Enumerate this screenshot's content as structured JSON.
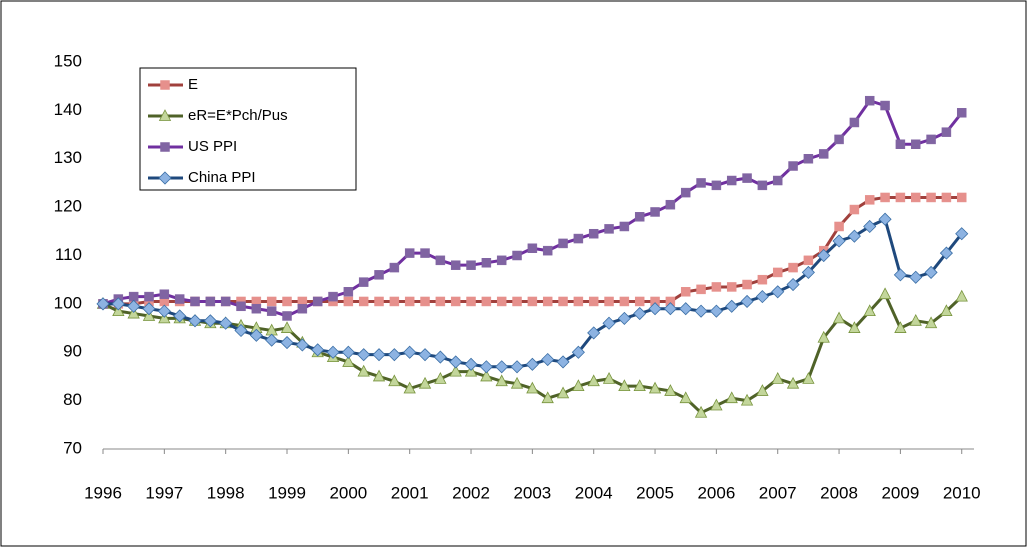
{
  "chart_data": {
    "type": "line",
    "x": [
      1996,
      1996.25,
      1996.5,
      1996.75,
      1997,
      1997.25,
      1997.5,
      1997.75,
      1998,
      1998.25,
      1998.5,
      1998.75,
      1999,
      1999.25,
      1999.5,
      1999.75,
      2000,
      2000.25,
      2000.5,
      2000.75,
      2001,
      2001.25,
      2001.5,
      2001.75,
      2002,
      2002.25,
      2002.5,
      2002.75,
      2003,
      2003.25,
      2003.5,
      2003.75,
      2004,
      2004.25,
      2004.5,
      2004.75,
      2005,
      2005.25,
      2005.5,
      2005.75,
      2006,
      2006.25,
      2006.5,
      2006.75,
      2007,
      2007.25,
      2007.5,
      2007.75,
      2008,
      2008.25,
      2008.5,
      2008.75,
      2009,
      2009.25,
      2009.5,
      2009.75,
      2010
    ],
    "series": [
      {
        "name": "E",
        "color": "#a0403c",
        "marker_color": "#e6908c",
        "marker": "square",
        "values": [
          100,
          100,
          100,
          100.5,
          100.5,
          100.5,
          100.5,
          100.5,
          100.5,
          100.5,
          100.5,
          100.5,
          100.5,
          100.5,
          100.5,
          100.5,
          100.5,
          100.5,
          100.5,
          100.5,
          100.5,
          100.5,
          100.5,
          100.5,
          100.5,
          100.5,
          100.5,
          100.5,
          100.5,
          100.5,
          100.5,
          100.5,
          100.5,
          100.5,
          100.5,
          100.5,
          100.5,
          100.5,
          102.5,
          103,
          103.5,
          103.5,
          104,
          105,
          106.5,
          107.5,
          109,
          111,
          116,
          119.5,
          121.5,
          122,
          122,
          122,
          122,
          122,
          122
        ]
      },
      {
        "name": "eR=E*Pch/Pus",
        "color": "#4f6228",
        "marker_color": "#c3d69b",
        "marker": "triangle",
        "values": [
          100,
          98.5,
          98,
          97.5,
          97,
          97,
          96.5,
          96,
          96,
          95.5,
          95,
          94.5,
          95,
          92,
          90,
          89,
          88,
          86,
          85,
          84,
          82.5,
          83.5,
          84.5,
          86,
          86,
          85,
          84,
          83.5,
          82.5,
          80.5,
          81.5,
          83,
          84,
          84.5,
          83,
          83,
          82.5,
          82,
          80.5,
          77.5,
          79,
          80.5,
          80,
          82,
          84.5,
          83.5,
          84.5,
          93,
          97,
          95,
          98.5,
          102,
          95,
          96.5,
          96,
          98.5,
          101.5
        ]
      },
      {
        "name": "US PPI",
        "color": "#7030a0",
        "marker_color": "#8064a2",
        "marker": "square",
        "values": [
          100,
          101,
          101.5,
          101.5,
          102,
          101,
          100.5,
          100.5,
          100.5,
          99.5,
          99,
          98.5,
          97.5,
          99,
          100.5,
          101.5,
          102.5,
          104.5,
          106,
          107.5,
          110.5,
          110.5,
          109,
          108,
          108,
          108.5,
          109,
          110,
          111.5,
          111,
          112.5,
          113.5,
          114.5,
          115.5,
          116,
          118,
          119,
          120.5,
          123,
          125,
          124.5,
          125.5,
          126,
          124.5,
          125.5,
          128.5,
          130,
          131,
          134,
          137.5,
          142,
          141,
          133,
          133,
          134,
          135.5,
          139.5
        ]
      },
      {
        "name": "China PPI",
        "color": "#1f497d",
        "marker_color": "#8db3e2",
        "marker": "diamond",
        "values": [
          100,
          100,
          99.5,
          99,
          98.5,
          97.5,
          96.5,
          96.5,
          96,
          94.5,
          93.5,
          92.5,
          92,
          91.5,
          90.5,
          90,
          90,
          89.5,
          89.5,
          89.5,
          90,
          89.5,
          89,
          88,
          87.5,
          87,
          87,
          87,
          87.5,
          88.5,
          88,
          90,
          94,
          96,
          97,
          98,
          99,
          99,
          99,
          98.5,
          98.5,
          99.5,
          100.5,
          101.5,
          102.5,
          104,
          106.5,
          110,
          113,
          114,
          116,
          117.5,
          106,
          105.5,
          106.5,
          110.5,
          114.5
        ]
      }
    ],
    "xlim": [
      1996,
      2010.2
    ],
    "xticks": [
      1996,
      1997,
      1998,
      1999,
      2000,
      2001,
      2002,
      2003,
      2004,
      2005,
      2006,
      2007,
      2008,
      2009,
      2010
    ],
    "ylim": [
      70,
      150
    ],
    "yticks": [
      70,
      80,
      90,
      100,
      110,
      120,
      130,
      140,
      150
    ],
    "grid": false,
    "legend": "top-left"
  }
}
